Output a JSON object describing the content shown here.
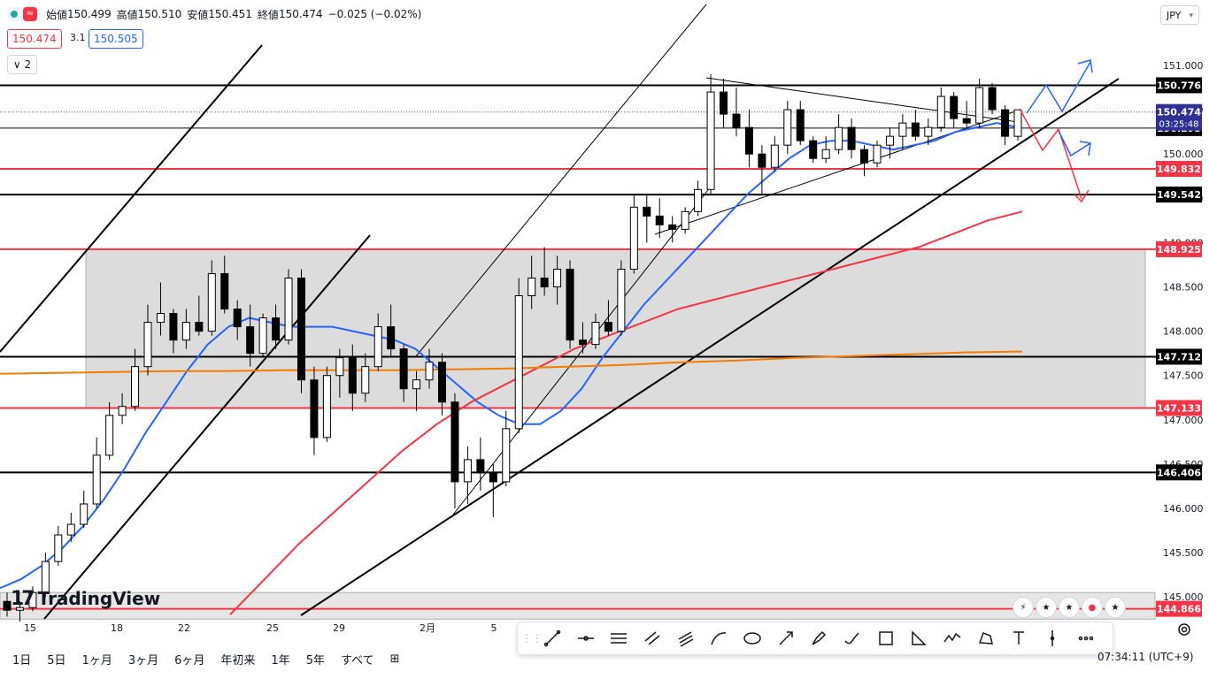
{
  "header": {
    "open_label": "始値",
    "open": "150.499",
    "high_label": "高値",
    "high": "150.510",
    "low_label": "安値",
    "low": "150.451",
    "close_label": "終値",
    "close": "150.474",
    "change": "−0.025 (−0.02%)"
  },
  "quote": {
    "sell": "150.474",
    "spread": "3.1",
    "buy": "150.505"
  },
  "indicators_collapsed": "2",
  "currency": "JPY",
  "brand": "TradingView",
  "timeframes": [
    "1日",
    "5日",
    "1ヶ月",
    "3ヶ月",
    "6ヶ月",
    "年初来",
    "1年",
    "5年",
    "すべて"
  ],
  "clock": "07:34:11 (UTC+9)",
  "countdown": "03:25:48",
  "chart_data": {
    "type": "candlestick",
    "instrument_currency": "JPY",
    "y_ticks": [
      151.0,
      150.5,
      150.0,
      149.5,
      149.0,
      148.5,
      148.0,
      147.5,
      147.0,
      146.5,
      146.0,
      145.5,
      145.0
    ],
    "y_tick_labels": [
      "151.000",
      "150.500",
      "150.000",
      "149.500",
      "149.000",
      "148.500",
      "148.000",
      "147.500",
      "147.000",
      "146.500",
      "146.000",
      "145.500",
      "145.000"
    ],
    "ylim": [
      144.75,
      151.5
    ],
    "x_tick_labels": [
      "15",
      "18",
      "22",
      "25",
      "29",
      "2月",
      "5"
    ],
    "candles": [
      {
        "o": 144.95,
        "h": 145.05,
        "l": 144.78,
        "c": 144.85
      },
      {
        "o": 144.85,
        "h": 144.95,
        "l": 144.72,
        "c": 144.88
      },
      {
        "o": 144.88,
        "h": 145.12,
        "l": 144.84,
        "c": 145.05
      },
      {
        "o": 145.05,
        "h": 145.5,
        "l": 145.0,
        "c": 145.4
      },
      {
        "o": 145.4,
        "h": 145.8,
        "l": 145.35,
        "c": 145.7
      },
      {
        "o": 145.7,
        "h": 145.95,
        "l": 145.62,
        "c": 145.82
      },
      {
        "o": 145.82,
        "h": 146.2,
        "l": 145.78,
        "c": 146.05
      },
      {
        "o": 146.05,
        "h": 146.8,
        "l": 146.0,
        "c": 146.6
      },
      {
        "o": 146.6,
        "h": 147.2,
        "l": 146.55,
        "c": 147.05
      },
      {
        "o": 147.05,
        "h": 147.3,
        "l": 146.95,
        "c": 147.15
      },
      {
        "o": 147.15,
        "h": 147.8,
        "l": 147.1,
        "c": 147.6
      },
      {
        "o": 147.6,
        "h": 148.3,
        "l": 147.5,
        "c": 148.1
      },
      {
        "o": 148.1,
        "h": 148.55,
        "l": 147.95,
        "c": 148.2
      },
      {
        "o": 148.2,
        "h": 148.25,
        "l": 147.75,
        "c": 147.9
      },
      {
        "o": 147.9,
        "h": 148.25,
        "l": 147.8,
        "c": 148.1
      },
      {
        "o": 148.1,
        "h": 148.4,
        "l": 147.95,
        "c": 148.0
      },
      {
        "o": 148.0,
        "h": 148.8,
        "l": 147.95,
        "c": 148.65
      },
      {
        "o": 148.65,
        "h": 148.85,
        "l": 148.2,
        "c": 148.25
      },
      {
        "o": 148.25,
        "h": 148.35,
        "l": 147.9,
        "c": 148.05
      },
      {
        "o": 148.05,
        "h": 148.3,
        "l": 147.6,
        "c": 147.75
      },
      {
        "o": 147.75,
        "h": 148.2,
        "l": 147.7,
        "c": 148.15
      },
      {
        "o": 148.15,
        "h": 148.3,
        "l": 147.8,
        "c": 147.9
      },
      {
        "o": 147.9,
        "h": 148.7,
        "l": 147.85,
        "c": 148.6
      },
      {
        "o": 148.6,
        "h": 148.7,
        "l": 147.3,
        "c": 147.45
      },
      {
        "o": 147.45,
        "h": 147.6,
        "l": 146.6,
        "c": 146.8
      },
      {
        "o": 146.8,
        "h": 147.6,
        "l": 146.75,
        "c": 147.5
      },
      {
        "o": 147.5,
        "h": 147.8,
        "l": 147.25,
        "c": 147.7
      },
      {
        "o": 147.7,
        "h": 147.85,
        "l": 147.1,
        "c": 147.3
      },
      {
        "o": 147.3,
        "h": 147.75,
        "l": 147.2,
        "c": 147.6
      },
      {
        "o": 147.6,
        "h": 148.2,
        "l": 147.55,
        "c": 148.05
      },
      {
        "o": 148.05,
        "h": 148.3,
        "l": 147.7,
        "c": 147.8
      },
      {
        "o": 147.8,
        "h": 147.85,
        "l": 147.2,
        "c": 147.35
      },
      {
        "o": 147.35,
        "h": 147.55,
        "l": 147.1,
        "c": 147.45
      },
      {
        "o": 147.45,
        "h": 147.8,
        "l": 147.35,
        "c": 147.65
      },
      {
        "o": 147.65,
        "h": 147.75,
        "l": 147.05,
        "c": 147.2
      },
      {
        "o": 147.2,
        "h": 147.3,
        "l": 146.0,
        "c": 146.3
      },
      {
        "o": 146.3,
        "h": 146.7,
        "l": 146.05,
        "c": 146.55
      },
      {
        "o": 146.55,
        "h": 146.8,
        "l": 146.2,
        "c": 146.4
      },
      {
        "o": 146.4,
        "h": 146.5,
        "l": 145.9,
        "c": 146.3
      },
      {
        "o": 146.3,
        "h": 147.1,
        "l": 146.25,
        "c": 146.9
      },
      {
        "o": 146.9,
        "h": 148.6,
        "l": 146.85,
        "c": 148.4
      },
      {
        "o": 148.4,
        "h": 148.85,
        "l": 148.25,
        "c": 148.6
      },
      {
        "o": 148.6,
        "h": 148.95,
        "l": 148.4,
        "c": 148.5
      },
      {
        "o": 148.5,
        "h": 148.85,
        "l": 148.3,
        "c": 148.7
      },
      {
        "o": 148.7,
        "h": 148.8,
        "l": 147.8,
        "c": 147.9
      },
      {
        "o": 147.9,
        "h": 148.1,
        "l": 147.75,
        "c": 147.85
      },
      {
        "o": 147.85,
        "h": 148.2,
        "l": 147.8,
        "c": 148.1
      },
      {
        "o": 148.1,
        "h": 148.35,
        "l": 147.95,
        "c": 148.0
      },
      {
        "o": 148.0,
        "h": 148.8,
        "l": 147.95,
        "c": 148.7
      },
      {
        "o": 148.7,
        "h": 149.55,
        "l": 148.65,
        "c": 149.4
      },
      {
        "o": 149.4,
        "h": 149.55,
        "l": 149.0,
        "c": 149.3
      },
      {
        "o": 149.3,
        "h": 149.5,
        "l": 149.05,
        "c": 149.2
      },
      {
        "o": 149.2,
        "h": 149.3,
        "l": 149.0,
        "c": 149.15
      },
      {
        "o": 149.15,
        "h": 149.4,
        "l": 149.1,
        "c": 149.35
      },
      {
        "o": 149.35,
        "h": 149.7,
        "l": 149.3,
        "c": 149.6
      },
      {
        "o": 149.6,
        "h": 150.9,
        "l": 149.55,
        "c": 150.7
      },
      {
        "o": 150.7,
        "h": 150.85,
        "l": 150.3,
        "c": 150.45
      },
      {
        "o": 150.45,
        "h": 150.75,
        "l": 150.2,
        "c": 150.3
      },
      {
        "o": 150.3,
        "h": 150.5,
        "l": 149.85,
        "c": 150.0
      },
      {
        "o": 150.0,
        "h": 150.1,
        "l": 149.55,
        "c": 149.85
      },
      {
        "o": 149.85,
        "h": 150.2,
        "l": 149.8,
        "c": 150.1
      },
      {
        "o": 150.1,
        "h": 150.6,
        "l": 150.0,
        "c": 150.5
      },
      {
        "o": 150.5,
        "h": 150.6,
        "l": 150.1,
        "c": 150.15
      },
      {
        "o": 150.15,
        "h": 150.2,
        "l": 149.9,
        "c": 149.95
      },
      {
        "o": 149.95,
        "h": 150.2,
        "l": 149.9,
        "c": 150.05
      },
      {
        "o": 150.05,
        "h": 150.45,
        "l": 150.0,
        "c": 150.3
      },
      {
        "o": 150.3,
        "h": 150.4,
        "l": 149.95,
        "c": 150.05
      },
      {
        "o": 150.05,
        "h": 150.1,
        "l": 149.75,
        "c": 149.9
      },
      {
        "o": 149.9,
        "h": 150.15,
        "l": 149.85,
        "c": 150.1
      },
      {
        "o": 150.1,
        "h": 150.3,
        "l": 149.95,
        "c": 150.2
      },
      {
        "o": 150.2,
        "h": 150.45,
        "l": 150.05,
        "c": 150.35
      },
      {
        "o": 150.35,
        "h": 150.5,
        "l": 150.15,
        "c": 150.2
      },
      {
        "o": 150.2,
        "h": 150.4,
        "l": 150.1,
        "c": 150.3
      },
      {
        "o": 150.3,
        "h": 150.75,
        "l": 150.25,
        "c": 150.65
      },
      {
        "o": 150.65,
        "h": 150.7,
        "l": 150.3,
        "c": 150.4
      },
      {
        "o": 150.4,
        "h": 150.6,
        "l": 150.3,
        "c": 150.35
      },
      {
        "o": 150.35,
        "h": 150.85,
        "l": 150.3,
        "c": 150.75
      },
      {
        "o": 150.75,
        "h": 150.8,
        "l": 150.45,
        "c": 150.5
      },
      {
        "o": 150.5,
        "h": 150.55,
        "l": 150.1,
        "c": 150.2
      },
      {
        "o": 150.2,
        "h": 150.5,
        "l": 150.15,
        "c": 150.499
      }
    ],
    "series": [
      {
        "name": "",
        "color": "#2962ff",
        "values": [
          145.1,
          145.2,
          145.35,
          145.55,
          145.8,
          146.1,
          146.45,
          146.85,
          147.2,
          147.55,
          147.85,
          148.05,
          148.15,
          148.1,
          148.05,
          148.05,
          148.05,
          148.0,
          147.95,
          147.9,
          147.8,
          147.6,
          147.4,
          147.2,
          147.05,
          146.95,
          146.95,
          147.1,
          147.35,
          147.7,
          148.0,
          148.3,
          148.55,
          148.8,
          149.05,
          149.3,
          149.55,
          149.75,
          149.95,
          150.1,
          150.15,
          150.15,
          150.1,
          150.05,
          150.1,
          150.15,
          150.25,
          150.3,
          150.35,
          150.3
        ]
      },
      {
        "name": "",
        "color": "#f23645",
        "values": [
          144.8,
          145.2,
          145.6,
          145.95,
          146.3,
          146.65,
          146.95,
          147.2,
          147.4,
          147.6,
          147.8,
          147.95,
          148.1,
          148.25,
          148.35,
          148.45,
          148.55,
          148.65,
          148.75,
          148.85,
          148.95,
          149.1,
          149.25,
          149.35
        ]
      },
      {
        "name": "",
        "color": "#f57c00",
        "values": [
          147.52,
          147.53,
          147.54,
          147.55,
          147.55,
          147.56,
          147.56,
          147.56,
          147.57,
          147.58,
          147.6,
          147.62,
          147.65,
          147.67,
          147.7,
          147.72,
          147.74,
          147.76,
          147.77
        ]
      }
    ],
    "horizontal_levels": [
      {
        "value": 150.776,
        "label": "150.776",
        "color": "#000000"
      },
      {
        "value": 150.293,
        "label": "150.293",
        "color": "#000000"
      },
      {
        "value": 149.832,
        "label": "149.832",
        "color": "#f23645"
      },
      {
        "value": 149.542,
        "label": "149.542",
        "color": "#000000"
      },
      {
        "value": 148.925,
        "label": "148.925",
        "color": "#f23645"
      },
      {
        "value": 147.712,
        "label": "147.712",
        "color": "#000000"
      },
      {
        "value": 147.133,
        "label": "147.133",
        "color": "#f23645"
      },
      {
        "value": 146.406,
        "label": "146.406",
        "color": "#000000"
      },
      {
        "value": 144.866,
        "label": "144.866",
        "color": "#f23645"
      }
    ],
    "last_price": {
      "value": 150.474,
      "label": "150.474",
      "color": "#2962ff"
    },
    "range_box": {
      "high": 148.925,
      "low": 147.133
    },
    "bottom_box": {
      "high": 145.05,
      "low": 144.75
    }
  }
}
